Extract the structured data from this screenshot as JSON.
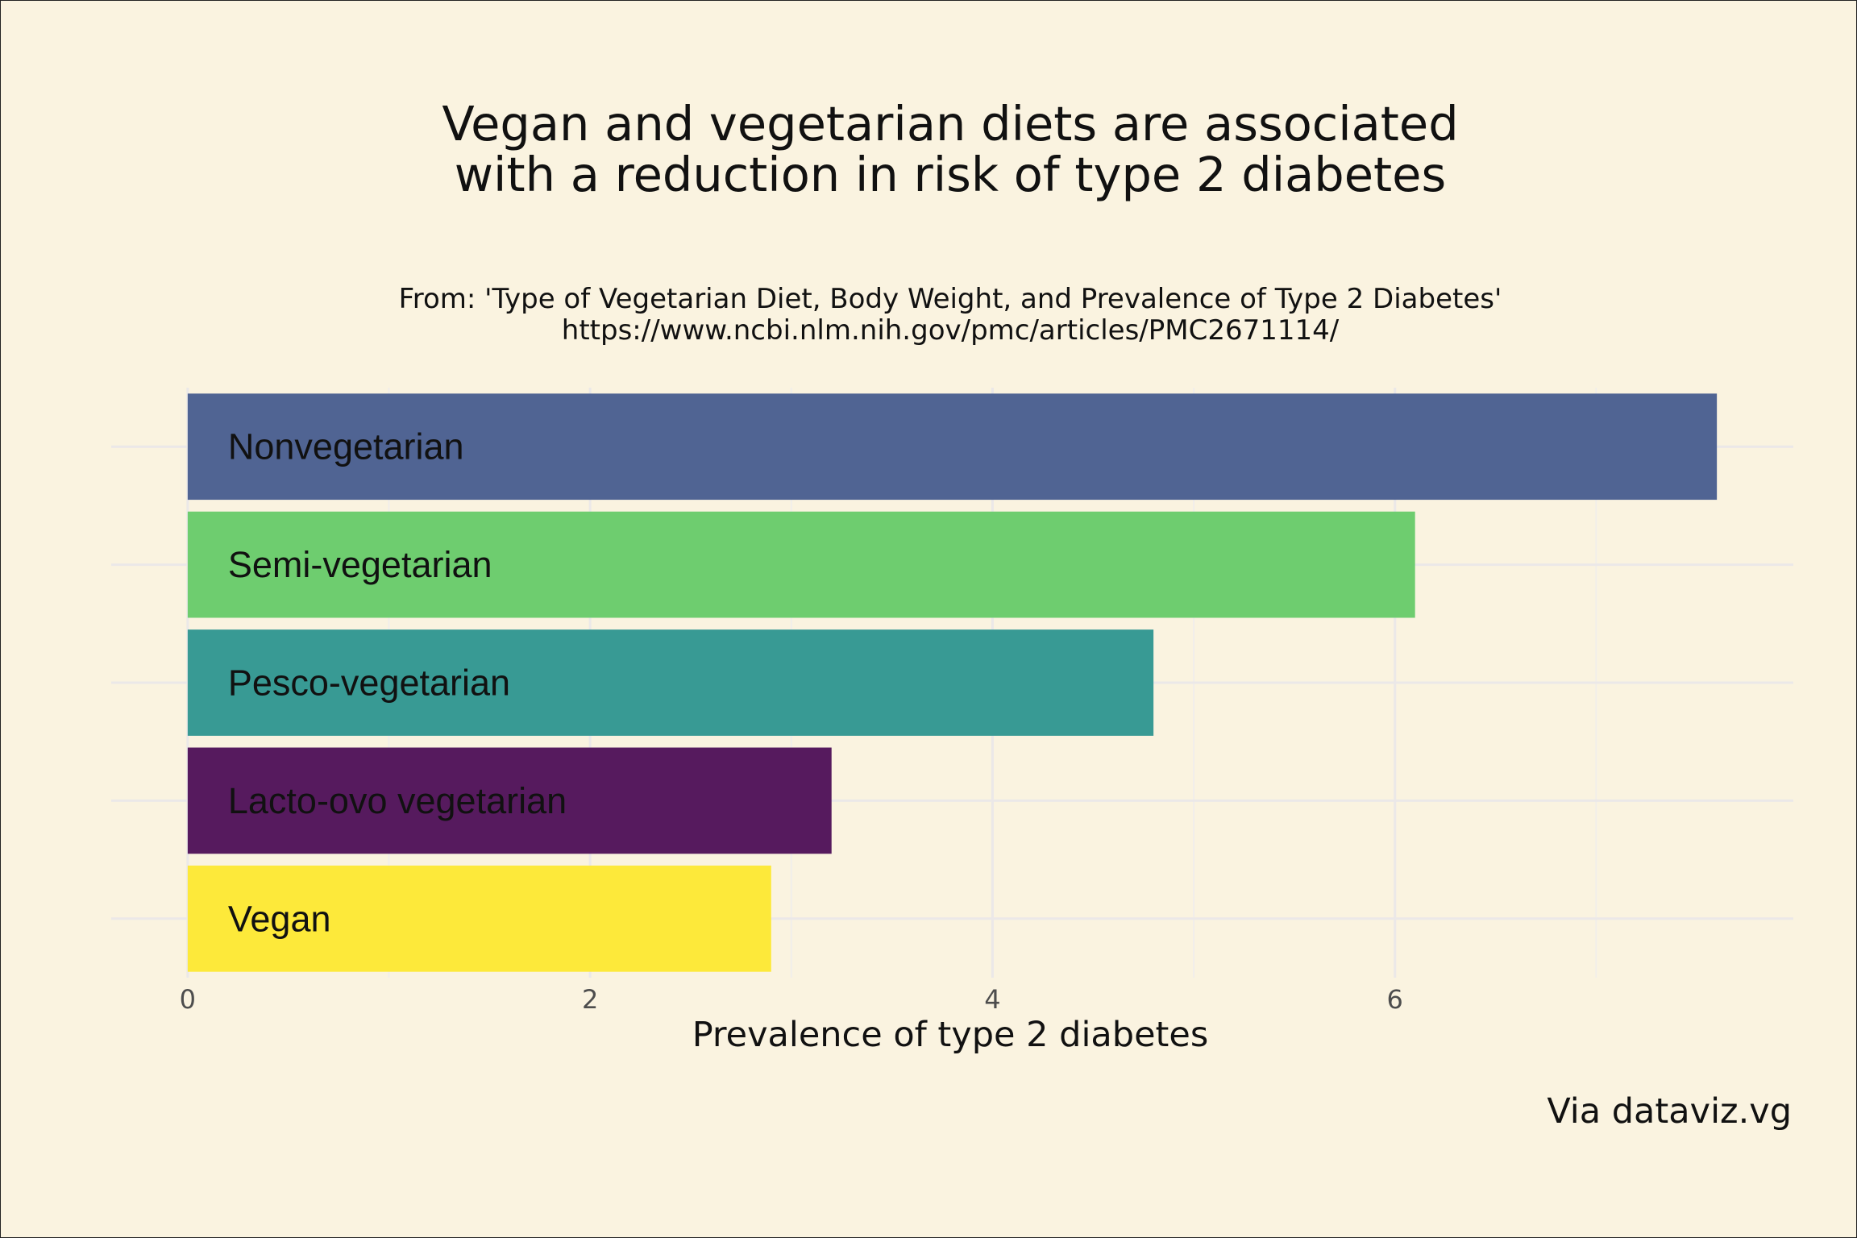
{
  "chart_data": {
    "type": "bar",
    "orientation": "horizontal",
    "title_lines": [
      "Vegan and vegetarian diets are associated",
      "with a reduction in risk of type 2 diabetes"
    ],
    "subtitle_lines": [
      "From: 'Type of Vegetarian Diet, Body Weight, and Prevalence of Type 2 Diabetes'",
      "https://www.ncbi.nlm.nih.gov/pmc/articles/PMC2671114/"
    ],
    "xlabel": "Prevalence of type 2 diabetes",
    "ylabel": "",
    "caption": "Via dataviz.vg",
    "categories": [
      "Nonvegetarian",
      "Semi-vegetarian",
      "Pesco-vegetarian",
      "Lacto-ovo vegetarian",
      "Vegan"
    ],
    "values": [
      7.6,
      6.1,
      4.8,
      3.2,
      2.9
    ],
    "colors": [
      "#506493",
      "#6ecd6f",
      "#389a94",
      "#561a5e",
      "#fde93a"
    ],
    "x_ticks": [
      "0",
      "2",
      "4",
      "6"
    ],
    "x_tick_values": [
      0,
      2,
      4,
      6
    ],
    "xlim": [
      -0.38,
      7.98
    ],
    "grid": true,
    "legend": "none",
    "background": "#faf3e0"
  }
}
